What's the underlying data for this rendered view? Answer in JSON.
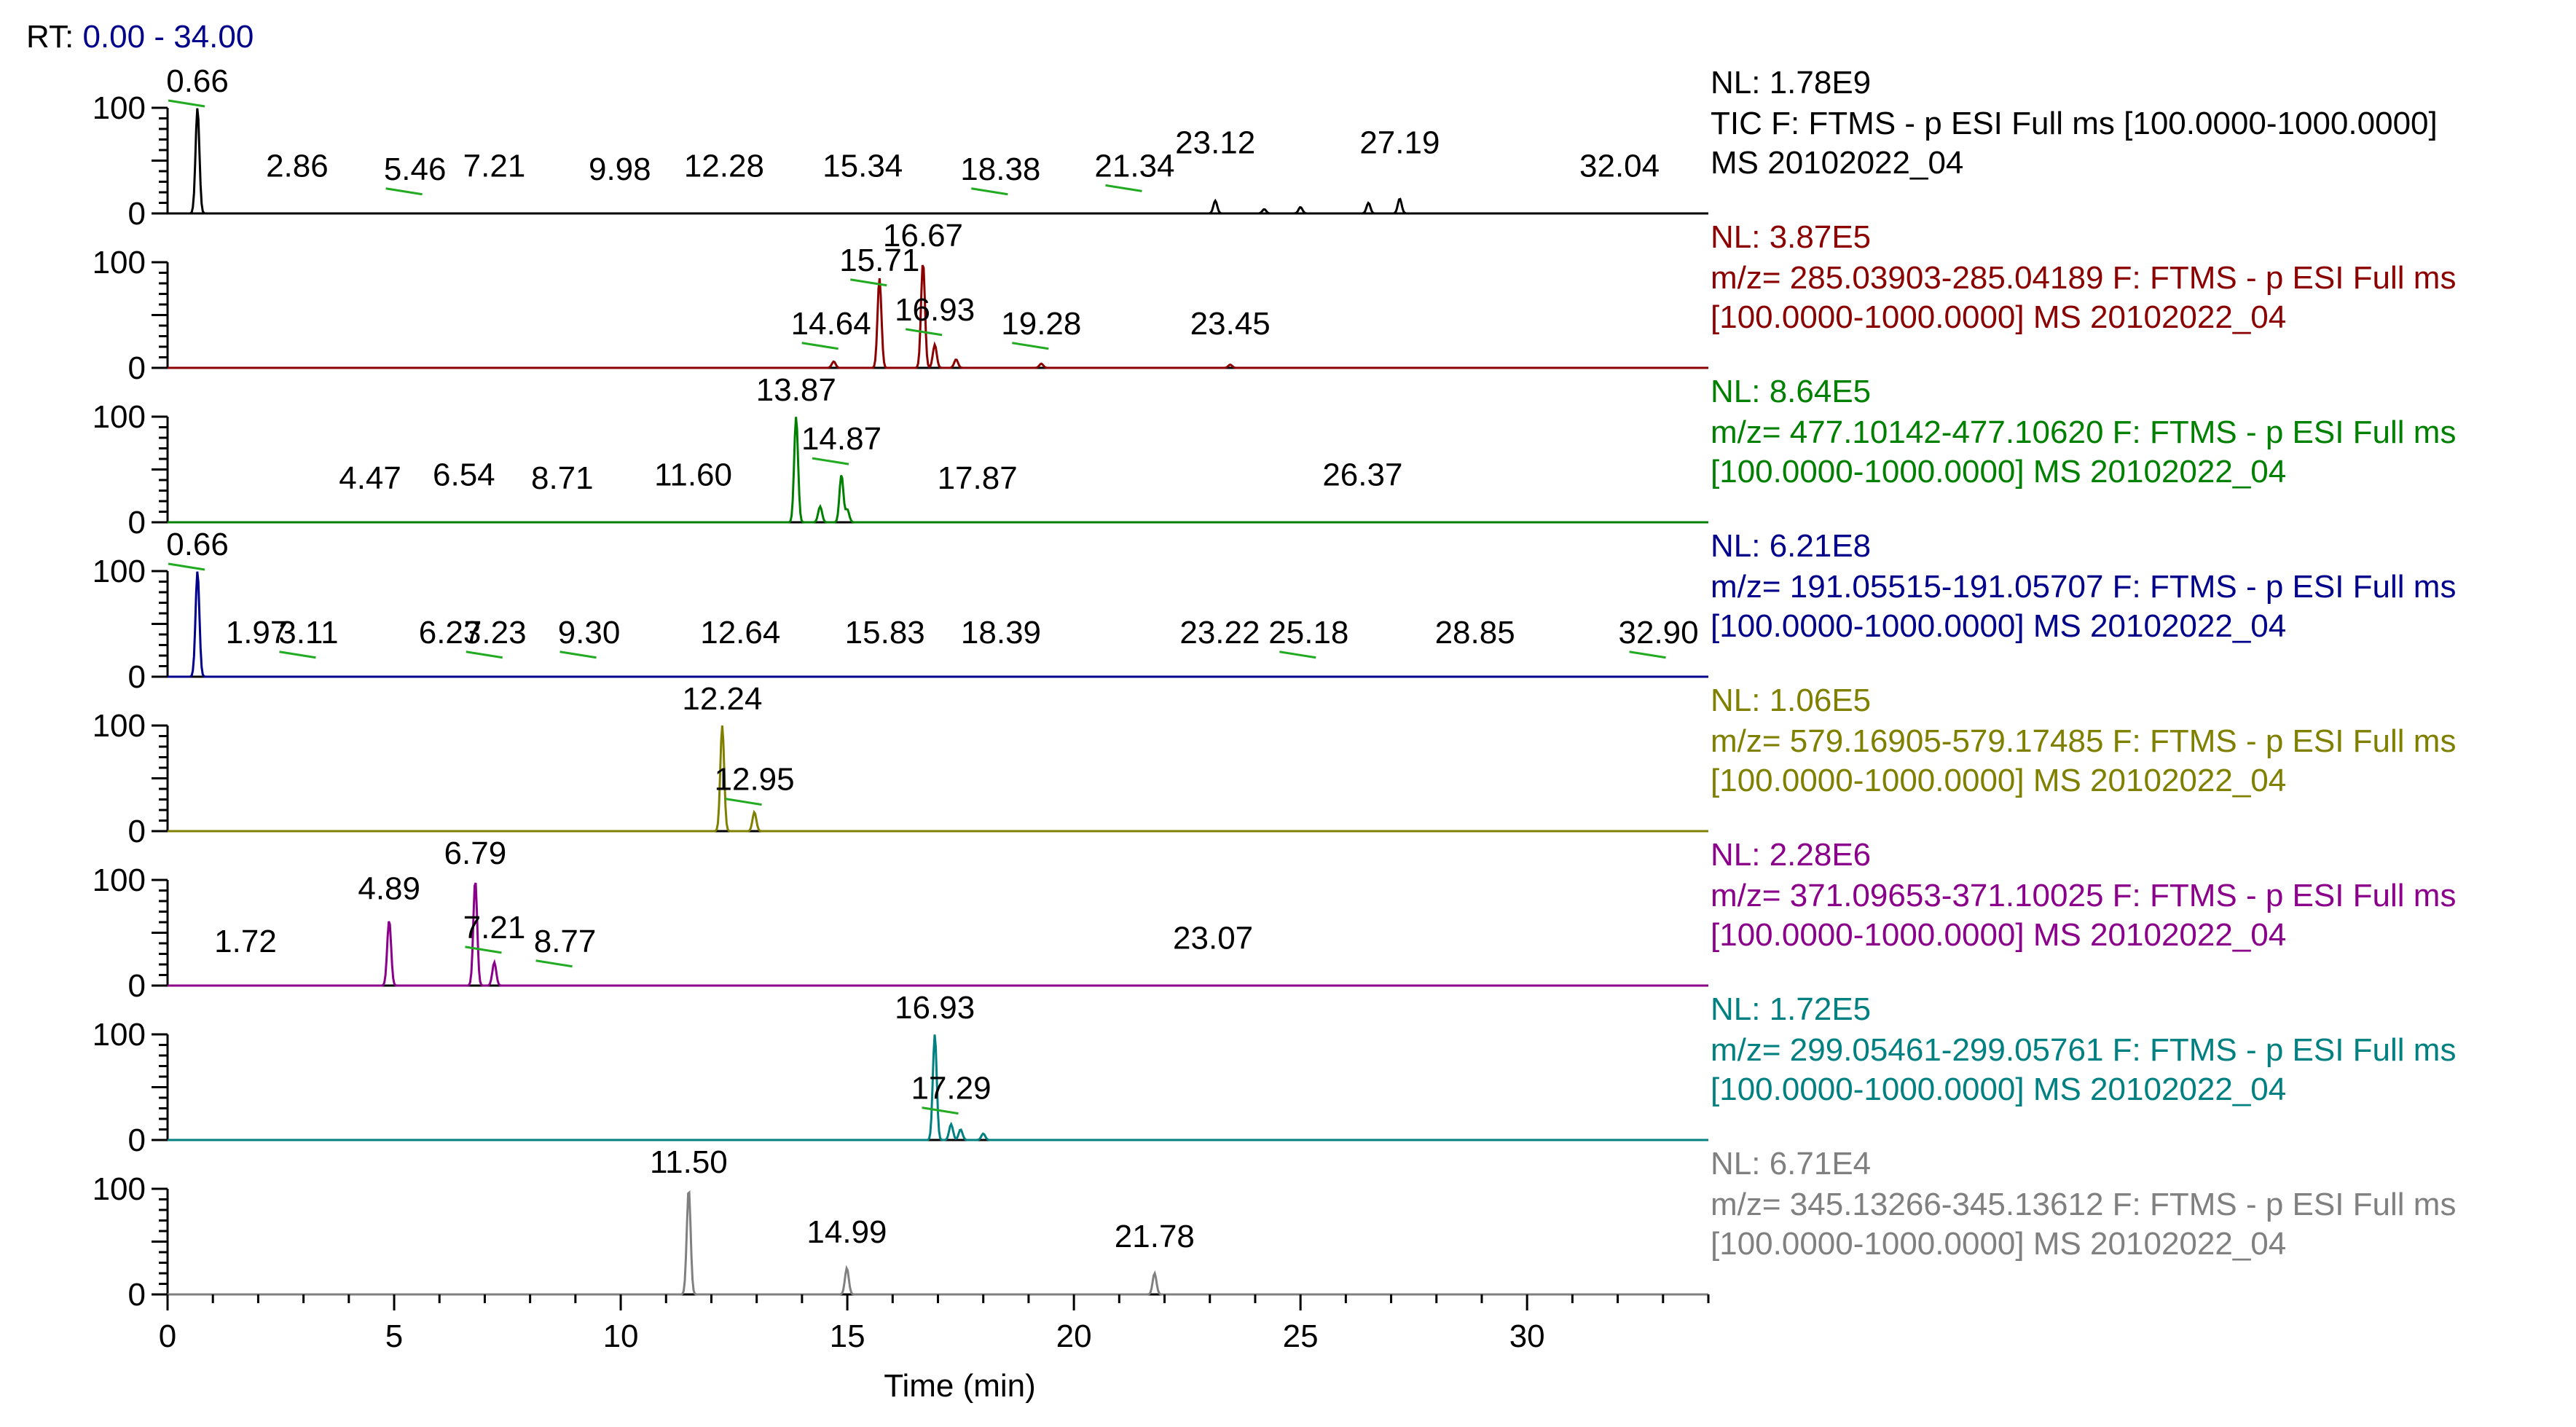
{
  "header": {
    "label": "RT:",
    "range": "0.00 - 34.00"
  },
  "chart_data": {
    "type": "line",
    "title": "RT: 0.00 - 34.00",
    "xlabel": "Time (min)",
    "xlim": [
      0,
      34
    ],
    "xticks": [
      "0",
      "5",
      "10",
      "15",
      "20",
      "25",
      "30"
    ],
    "ytick_labels": [
      "0",
      "100"
    ],
    "ylim": [
      0,
      100
    ],
    "panels": [
      {
        "name": "TIC",
        "color": "#000000",
        "nl": "NL: 1.78E9",
        "legend": [
          "TIC F: FTMS - p ESI Full ms [100.0000-1000.0000]",
          "MS 20102022_04"
        ],
        "peaks": [
          [
            0.66,
            100
          ],
          [
            23.12,
            12
          ],
          [
            26.5,
            10
          ],
          [
            27.19,
            14
          ],
          [
            25.0,
            6
          ],
          [
            24.2,
            4
          ]
        ],
        "labels": [
          {
            "text": "0.66",
            "rt": 0.66,
            "pos": 1.0,
            "leader": true
          },
          {
            "text": "2.86",
            "rt": 2.86,
            "pos": 0.28
          },
          {
            "text": "5.46",
            "rt": 5.46,
            "pos": 0.25,
            "leader": true
          },
          {
            "text": "7.21",
            "rt": 7.21,
            "pos": 0.28
          },
          {
            "text": "9.98",
            "rt": 9.98,
            "pos": 0.25
          },
          {
            "text": "12.28",
            "rt": 12.28,
            "pos": 0.28
          },
          {
            "text": "15.34",
            "rt": 15.34,
            "pos": 0.28
          },
          {
            "text": "18.38",
            "rt": 18.38,
            "pos": 0.25,
            "leader": true
          },
          {
            "text": "21.34",
            "rt": 21.34,
            "pos": 0.28,
            "leader": true
          },
          {
            "text": "23.12",
            "rt": 23.12,
            "pos": 0.5
          },
          {
            "text": "27.19",
            "rt": 27.19,
            "pos": 0.5
          },
          {
            "text": "32.04",
            "rt": 32.04,
            "pos": 0.28
          }
        ]
      },
      {
        "name": "m/z 285",
        "color": "#8b0000",
        "nl": "NL: 3.87E5",
        "legend": [
          "m/z= 285.03903-285.04189 F: FTMS - p ESI Full ms",
          "[100.0000-1000.0000]  MS 20102022_04"
        ],
        "peaks": [
          [
            15.71,
            85
          ],
          [
            16.67,
            100
          ],
          [
            16.93,
            22
          ],
          [
            17.4,
            8
          ],
          [
            14.7,
            6
          ],
          [
            19.28,
            4
          ],
          [
            23.45,
            3
          ]
        ],
        "labels": [
          {
            "text": "15.71",
            "rt": 15.71,
            "pos": 0.85,
            "leader": true
          },
          {
            "text": "16.67",
            "rt": 16.67,
            "pos": 1.0
          },
          {
            "text": "16.93",
            "rt": 16.93,
            "pos": 0.38,
            "leader": true
          },
          {
            "text": "14.64",
            "rt": 14.64,
            "pos": 0.25,
            "leader": true
          },
          {
            "text": "19.28",
            "rt": 19.28,
            "pos": 0.25,
            "leader": true
          },
          {
            "text": "23.45",
            "rt": 23.45,
            "pos": 0.25
          }
        ]
      },
      {
        "name": "m/z 477",
        "color": "#008000",
        "nl": "NL: 8.64E5",
        "legend": [
          "m/z= 477.10142-477.10620 F: FTMS - p ESI Full ms",
          "[100.0000-1000.0000]  MS 20102022_04"
        ],
        "peaks": [
          [
            13.87,
            100
          ],
          [
            14.87,
            45
          ],
          [
            14.4,
            15
          ],
          [
            15.0,
            12
          ]
        ],
        "labels": [
          {
            "text": "13.87",
            "rt": 13.87,
            "pos": 1.0
          },
          {
            "text": "14.87",
            "rt": 14.87,
            "pos": 0.62,
            "leader": true
          },
          {
            "text": "4.47",
            "rt": 4.47,
            "pos": 0.25
          },
          {
            "text": "6.54",
            "rt": 6.54,
            "pos": 0.28
          },
          {
            "text": "8.71",
            "rt": 8.71,
            "pos": 0.25
          },
          {
            "text": "11.60",
            "rt": 11.6,
            "pos": 0.28
          },
          {
            "text": "17.87",
            "rt": 17.87,
            "pos": 0.25
          },
          {
            "text": "26.37",
            "rt": 26.37,
            "pos": 0.28
          }
        ]
      },
      {
        "name": "m/z 191",
        "color": "#00008b",
        "nl": "NL: 6.21E8",
        "legend": [
          "m/z= 191.05515-191.05707 F: FTMS - p ESI Full ms",
          "[100.0000-1000.0000]  MS 20102022_04"
        ],
        "peaks": [
          [
            0.66,
            100
          ]
        ],
        "labels": [
          {
            "text": "0.66",
            "rt": 0.66,
            "pos": 1.0,
            "leader": true
          },
          {
            "text": "1.97",
            "rt": 1.97,
            "pos": 0.25
          },
          {
            "text": "3.11",
            "rt": 3.11,
            "pos": 0.25,
            "leader": true
          },
          {
            "text": "6.23",
            "rt": 6.23,
            "pos": 0.25
          },
          {
            "text": "7.23",
            "rt": 7.23,
            "pos": 0.25,
            "leader": true
          },
          {
            "text": "9.30",
            "rt": 9.3,
            "pos": 0.25,
            "leader": true
          },
          {
            "text": "12.64",
            "rt": 12.64,
            "pos": 0.25
          },
          {
            "text": "15.83",
            "rt": 15.83,
            "pos": 0.25
          },
          {
            "text": "18.39",
            "rt": 18.39,
            "pos": 0.25
          },
          {
            "text": "23.22",
            "rt": 23.22,
            "pos": 0.25
          },
          {
            "text": "25.18",
            "rt": 25.18,
            "pos": 0.25,
            "leader": true
          },
          {
            "text": "28.85",
            "rt": 28.85,
            "pos": 0.25
          },
          {
            "text": "32.90",
            "rt": 32.9,
            "pos": 0.25,
            "leader": true
          }
        ]
      },
      {
        "name": "m/z 579",
        "color": "#808000",
        "nl": "NL: 1.06E5",
        "legend": [
          "m/z= 579.16905-579.17485 F: FTMS - p ESI Full ms",
          "[100.0000-1000.0000]  MS 20102022_04"
        ],
        "peaks": [
          [
            12.24,
            100
          ],
          [
            12.95,
            18
          ]
        ],
        "labels": [
          {
            "text": "12.24",
            "rt": 12.24,
            "pos": 1.0
          },
          {
            "text": "12.95",
            "rt": 12.95,
            "pos": 0.32,
            "leader": true
          }
        ]
      },
      {
        "name": "m/z 371",
        "color": "#8b008b",
        "nl": "NL: 2.28E6",
        "legend": [
          "m/z= 371.09653-371.10025 F: FTMS - p ESI Full ms",
          "[100.0000-1000.0000]  MS 20102022_04"
        ],
        "peaks": [
          [
            4.89,
            62
          ],
          [
            6.79,
            100
          ],
          [
            7.21,
            22
          ]
        ],
        "labels": [
          {
            "text": "6.79",
            "rt": 6.79,
            "pos": 1.0
          },
          {
            "text": "4.89",
            "rt": 4.89,
            "pos": 0.75
          },
          {
            "text": "7.21",
            "rt": 7.21,
            "pos": 0.38,
            "leader": true
          },
          {
            "text": "1.72",
            "rt": 1.72,
            "pos": 0.25
          },
          {
            "text": "8.77",
            "rt": 8.77,
            "pos": 0.25,
            "leader": true
          },
          {
            "text": "23.07",
            "rt": 23.07,
            "pos": 0.28
          }
        ]
      },
      {
        "name": "m/z 299",
        "color": "#008080",
        "nl": "NL: 1.72E5",
        "legend": [
          "m/z= 299.05461-299.05761 F: FTMS - p ESI Full ms",
          "[100.0000-1000.0000]  MS 20102022_04"
        ],
        "peaks": [
          [
            16.93,
            100
          ],
          [
            17.29,
            15
          ],
          [
            17.5,
            10
          ],
          [
            18.0,
            6
          ]
        ],
        "labels": [
          {
            "text": "16.93",
            "rt": 16.93,
            "pos": 1.0
          },
          {
            "text": "17.29",
            "rt": 17.29,
            "pos": 0.32,
            "leader": true
          }
        ]
      },
      {
        "name": "m/z 345",
        "color": "#808080",
        "nl": "NL: 6.71E4",
        "legend": [
          "m/z= 345.13266-345.13612 F: FTMS - p ESI Full ms",
          "[100.0000-1000.0000]  MS 20102022_04"
        ],
        "peaks": [
          [
            11.5,
            100
          ],
          [
            14.99,
            25
          ],
          [
            21.78,
            20
          ]
        ],
        "labels": [
          {
            "text": "11.50",
            "rt": 11.5,
            "pos": 1.0
          },
          {
            "text": "14.99",
            "rt": 14.99,
            "pos": 0.42
          },
          {
            "text": "21.78",
            "rt": 21.78,
            "pos": 0.38
          }
        ]
      }
    ]
  }
}
